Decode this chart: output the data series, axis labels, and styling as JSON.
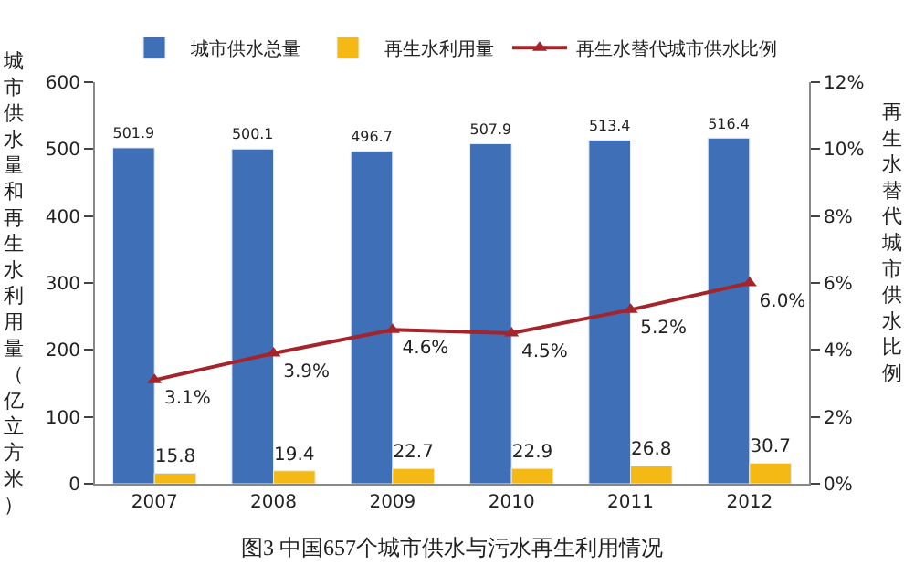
{
  "chart_data": {
    "type": "bar",
    "title": "图3 中国657个城市供水与污水再生利用情况",
    "ylabel": "城市供水量和再生水利用量（亿立方米）",
    "y2label": "再生水替代城市供水比例",
    "categories": [
      "2007",
      "2008",
      "2009",
      "2010",
      "2011",
      "2012"
    ],
    "series": [
      {
        "name": "城市供水总量",
        "color": "#3f6fb6",
        "values": [
          501.9,
          500.1,
          496.7,
          507.9,
          513.4,
          516.4
        ],
        "value_labels": [
          "501.9",
          "500.1",
          "496.7",
          "507.9",
          "513.4",
          "516.4"
        ]
      },
      {
        "name": "再生水利用量",
        "color": "#f5b915",
        "values": [
          15.8,
          19.4,
          22.7,
          22.9,
          26.8,
          30.7
        ],
        "value_labels": [
          "15.8",
          "19.4",
          "22.7",
          "22.9",
          "26.8",
          "30.7"
        ]
      },
      {
        "name": "再生水替代城市供水比例",
        "type": "line",
        "axis": "y2",
        "color": "#a3252b",
        "marker": "triangle",
        "values": [
          3.1,
          3.9,
          4.6,
          4.5,
          5.2,
          6.0
        ],
        "value_labels": [
          "3.1%",
          "3.9%",
          "4.6%",
          "4.5%",
          "5.2%",
          "6.0%"
        ]
      }
    ],
    "ylim": [
      0,
      600
    ],
    "yticks": [
      0,
      100,
      200,
      300,
      400,
      500,
      600
    ],
    "y2lim": [
      0,
      12
    ],
    "y2ticks": [
      {
        "value": 0,
        "label": "0%"
      },
      {
        "value": 2,
        "label": "2%"
      },
      {
        "value": 4,
        "label": "4%"
      },
      {
        "value": 6,
        "label": "6%"
      },
      {
        "value": 8,
        "label": "8%"
      },
      {
        "value": 10,
        "label": "10%"
      },
      {
        "value": 12,
        "label": "12%"
      }
    ],
    "legend": "top"
  }
}
